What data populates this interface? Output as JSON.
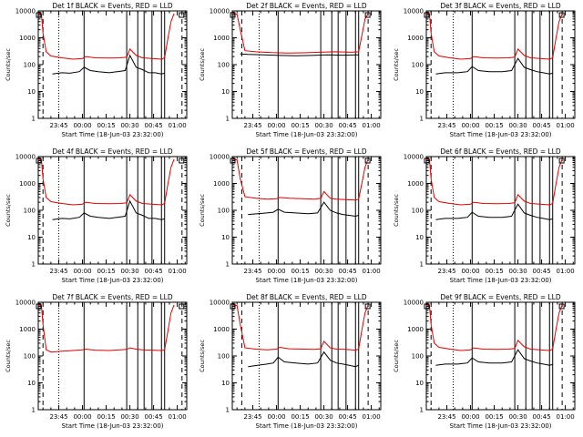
{
  "page": {
    "background": "#ffffff"
  },
  "colors": {
    "events": "#000000",
    "lld": "#e00000",
    "axis": "#000000"
  },
  "ylabel": "Counts/sec",
  "xlabel": "Start Time (18-Jun-03 23:32:00)",
  "x_tick_labels": [
    "23:45",
    "00:00",
    "00:15",
    "00:30",
    "00:45",
    "01:00"
  ],
  "y_tick_labels": [
    "1",
    "10",
    "100",
    "1000",
    "10000"
  ],
  "time_units": "minutes after 23:32:00",
  "chart_data": [
    {
      "type": "line",
      "title": "Det 1f BLACK = Events, RED = LLD",
      "xlim": [
        0,
        94
      ],
      "ylim": [
        1,
        10000
      ],
      "yscale": "log",
      "dashed_lines": [
        3,
        91
      ],
      "dotted_lines": [
        13
      ],
      "solid_lines": [
        29,
        56,
        63,
        67,
        72,
        78,
        80
      ],
      "series": [
        {
          "name": "BLACK = Events",
          "color": "#000000",
          "x": [
            9,
            15,
            20,
            26,
            29,
            33,
            38,
            45,
            50,
            55,
            58,
            62,
            66,
            70,
            74,
            78,
            80
          ],
          "y": [
            45,
            50,
            48,
            55,
            80,
            60,
            55,
            50,
            55,
            60,
            220,
            80,
            65,
            50,
            50,
            45,
            48
          ]
        },
        {
          "name": "RED = LLD",
          "color": "#e00000",
          "x": [
            0,
            2,
            3,
            5,
            8,
            15,
            22,
            28,
            30,
            36,
            45,
            52,
            56,
            58,
            62,
            66,
            72,
            78,
            80,
            82,
            84,
            86
          ],
          "y": [
            8000,
            7500,
            1500,
            300,
            210,
            180,
            160,
            170,
            200,
            180,
            175,
            180,
            190,
            380,
            220,
            180,
            170,
            160,
            180,
            900,
            4000,
            8000
          ]
        }
      ]
    },
    {
      "type": "line",
      "title": "Det 2f BLACK = Events, RED = LLD",
      "xlim": [
        0,
        94
      ],
      "ylim": [
        1,
        10000
      ],
      "yscale": "log",
      "dashed_lines": [
        6,
        86
      ],
      "dotted_lines": [
        17
      ],
      "solid_lines": [
        29,
        56,
        63,
        67,
        72,
        78,
        80
      ],
      "series": [
        {
          "name": "BLACK = Events",
          "color": "#000000",
          "x": [
            5,
            10,
            20,
            30,
            40,
            50,
            60,
            70,
            80
          ],
          "y": [
            250,
            240,
            230,
            220,
            215,
            220,
            230,
            225,
            230
          ]
        },
        {
          "name": "RED = LLD",
          "color": "#e00000",
          "x": [
            0,
            3,
            5,
            8,
            15,
            25,
            35,
            45,
            55,
            65,
            75,
            80,
            82,
            84,
            86
          ],
          "y": [
            8000,
            7500,
            2000,
            330,
            300,
            280,
            270,
            275,
            290,
            300,
            290,
            300,
            1200,
            5000,
            8000
          ]
        }
      ]
    },
    {
      "type": "line",
      "title": "Det 3f BLACK = Events, RED = LLD",
      "xlim": [
        0,
        94
      ],
      "ylim": [
        1,
        10000
      ],
      "yscale": "log",
      "dashed_lines": [
        3,
        86
      ],
      "dotted_lines": [
        17
      ],
      "solid_lines": [
        29,
        56,
        63,
        67,
        72,
        78,
        80
      ],
      "series": [
        {
          "name": "BLACK = Events",
          "color": "#000000",
          "x": [
            6,
            12,
            20,
            26,
            29,
            33,
            40,
            48,
            54,
            58,
            62,
            66,
            70,
            74,
            78,
            80
          ],
          "y": [
            45,
            50,
            50,
            55,
            85,
            60,
            55,
            55,
            60,
            170,
            80,
            65,
            55,
            50,
            45,
            48
          ]
        },
        {
          "name": "RED = LLD",
          "color": "#e00000",
          "x": [
            0,
            2,
            3,
            5,
            8,
            15,
            22,
            28,
            30,
            36,
            45,
            52,
            56,
            58,
            62,
            66,
            72,
            78,
            80,
            82,
            84,
            86
          ],
          "y": [
            8000,
            7500,
            1500,
            300,
            210,
            180,
            160,
            170,
            200,
            180,
            175,
            180,
            190,
            380,
            220,
            180,
            170,
            160,
            180,
            900,
            4000,
            8000
          ]
        }
      ]
    },
    {
      "type": "line",
      "title": "Det 4f BLACK = Events, RED = LLD",
      "xlim": [
        0,
        94
      ],
      "ylim": [
        1,
        10000
      ],
      "yscale": "log",
      "dashed_lines": [
        3,
        91
      ],
      "dotted_lines": [
        13
      ],
      "solid_lines": [
        29,
        56,
        63,
        67,
        72,
        78,
        80
      ],
      "series": [
        {
          "name": "BLACK = Events",
          "color": "#000000",
          "x": [
            9,
            15,
            20,
            26,
            29,
            33,
            38,
            45,
            50,
            55,
            58,
            62,
            66,
            70,
            74,
            78,
            80
          ],
          "y": [
            45,
            50,
            48,
            55,
            80,
            60,
            55,
            50,
            55,
            60,
            220,
            80,
            65,
            50,
            50,
            45,
            48
          ]
        },
        {
          "name": "RED = LLD",
          "color": "#e00000",
          "x": [
            0,
            2,
            3,
            5,
            8,
            15,
            22,
            28,
            30,
            36,
            45,
            52,
            56,
            58,
            62,
            66,
            72,
            78,
            80,
            82,
            84,
            86
          ],
          "y": [
            8000,
            7500,
            1500,
            300,
            210,
            180,
            160,
            170,
            200,
            180,
            175,
            180,
            190,
            380,
            220,
            180,
            170,
            160,
            180,
            900,
            4000,
            8000
          ]
        }
      ]
    },
    {
      "type": "line",
      "title": "Det 5f BLACK = Events, RED = LLD",
      "xlim": [
        0,
        94
      ],
      "ylim": [
        1,
        10000
      ],
      "yscale": "log",
      "dashed_lines": [
        6,
        86
      ],
      "dotted_lines": [
        17
      ],
      "solid_lines": [
        29,
        56,
        63,
        67,
        72,
        78,
        80
      ],
      "series": [
        {
          "name": "BLACK = Events",
          "color": "#000000",
          "x": [
            10,
            16,
            22,
            26,
            29,
            33,
            40,
            48,
            54,
            58,
            62,
            66,
            70,
            74,
            78,
            80
          ],
          "y": [
            70,
            75,
            80,
            85,
            110,
            85,
            80,
            75,
            80,
            200,
            100,
            80,
            70,
            65,
            60,
            65
          ]
        },
        {
          "name": "RED = LLD",
          "color": "#e00000",
          "x": [
            0,
            3,
            5,
            8,
            15,
            22,
            28,
            30,
            36,
            45,
            52,
            56,
            58,
            62,
            66,
            72,
            78,
            80,
            82,
            84,
            86
          ],
          "y": [
            8000,
            7500,
            1500,
            320,
            280,
            260,
            270,
            300,
            280,
            270,
            260,
            280,
            500,
            280,
            260,
            250,
            240,
            260,
            1000,
            4000,
            8000
          ]
        }
      ]
    },
    {
      "type": "line",
      "title": "Det 6f BLACK = Events, RED = LLD",
      "xlim": [
        0,
        94
      ],
      "ylim": [
        1,
        10000
      ],
      "yscale": "log",
      "dashed_lines": [
        3,
        86
      ],
      "dotted_lines": [
        17
      ],
      "solid_lines": [
        29,
        56,
        63,
        67,
        72,
        78,
        80
      ],
      "series": [
        {
          "name": "BLACK = Events",
          "color": "#000000",
          "x": [
            6,
            12,
            20,
            26,
            29,
            33,
            40,
            48,
            54,
            58,
            62,
            66,
            70,
            74,
            78,
            80
          ],
          "y": [
            45,
            50,
            50,
            55,
            85,
            60,
            55,
            55,
            60,
            170,
            80,
            65,
            55,
            50,
            45,
            48
          ]
        },
        {
          "name": "RED = LLD",
          "color": "#e00000",
          "x": [
            0,
            2,
            3,
            5,
            8,
            15,
            22,
            28,
            30,
            36,
            45,
            52,
            56,
            58,
            62,
            66,
            72,
            78,
            80,
            82,
            84,
            86
          ],
          "y": [
            8000,
            7500,
            1500,
            300,
            210,
            180,
            160,
            170,
            200,
            180,
            175,
            180,
            190,
            380,
            220,
            180,
            170,
            160,
            180,
            900,
            4000,
            8000
          ]
        }
      ]
    },
    {
      "type": "line",
      "title": "Det 7f BLACK = Events, RED = LLD",
      "xlim": [
        0,
        94
      ],
      "ylim": [
        1,
        10000
      ],
      "yscale": "log",
      "dashed_lines": [
        3,
        91
      ],
      "dotted_lines": [
        13
      ],
      "solid_lines": [
        29,
        56,
        63,
        67,
        72,
        78,
        80
      ],
      "series": [
        {
          "name": "BLACK = Events",
          "color": "#000000",
          "x": [],
          "y": []
        },
        {
          "name": "RED = LLD",
          "color": "#e00000",
          "x": [
            0,
            2,
            3,
            5,
            8,
            15,
            22,
            28,
            30,
            36,
            45,
            52,
            56,
            58,
            62,
            66,
            72,
            78,
            80,
            82,
            84,
            86
          ],
          "y": [
            8000,
            7500,
            1500,
            170,
            140,
            150,
            160,
            170,
            180,
            165,
            160,
            170,
            175,
            200,
            180,
            170,
            165,
            160,
            170,
            800,
            4000,
            8000
          ]
        }
      ]
    },
    {
      "type": "line",
      "title": "Det 8f BLACK = Events, RED = LLD",
      "xlim": [
        0,
        94
      ],
      "ylim": [
        1,
        10000
      ],
      "yscale": "log",
      "dashed_lines": [
        6,
        86
      ],
      "dotted_lines": [
        17
      ],
      "solid_lines": [
        29,
        56,
        63,
        67,
        72,
        78,
        80
      ],
      "series": [
        {
          "name": "BLACK = Events",
          "color": "#000000",
          "x": [
            10,
            16,
            22,
            26,
            29,
            33,
            40,
            48,
            54,
            58,
            62,
            66,
            70,
            74,
            78,
            80
          ],
          "y": [
            40,
            45,
            50,
            55,
            90,
            60,
            55,
            50,
            55,
            140,
            70,
            55,
            50,
            45,
            40,
            45
          ]
        },
        {
          "name": "RED = LLD",
          "color": "#e00000",
          "x": [
            0,
            3,
            5,
            8,
            15,
            22,
            28,
            30,
            36,
            45,
            52,
            56,
            58,
            62,
            66,
            72,
            78,
            80,
            82,
            84,
            86
          ],
          "y": [
            8000,
            7500,
            1500,
            200,
            180,
            170,
            180,
            210,
            185,
            180,
            175,
            185,
            350,
            200,
            180,
            175,
            165,
            180,
            900,
            4000,
            8000
          ]
        }
      ]
    },
    {
      "type": "line",
      "title": "Det 9f BLACK = Events, RED = LLD",
      "xlim": [
        0,
        94
      ],
      "ylim": [
        1,
        10000
      ],
      "yscale": "log",
      "dashed_lines": [
        3,
        86
      ],
      "dotted_lines": [
        17
      ],
      "solid_lines": [
        29,
        56,
        63,
        67,
        72,
        78,
        80
      ],
      "series": [
        {
          "name": "BLACK = Events",
          "color": "#000000",
          "x": [
            6,
            12,
            20,
            26,
            29,
            33,
            40,
            48,
            54,
            58,
            62,
            66,
            70,
            74,
            78,
            80
          ],
          "y": [
            45,
            50,
            50,
            55,
            85,
            60,
            55,
            55,
            60,
            170,
            80,
            65,
            55,
            50,
            45,
            48
          ]
        },
        {
          "name": "RED = LLD",
          "color": "#e00000",
          "x": [
            0,
            2,
            3,
            5,
            8,
            15,
            22,
            28,
            30,
            36,
            45,
            52,
            56,
            58,
            62,
            66,
            72,
            78,
            80,
            82,
            84,
            86
          ],
          "y": [
            8000,
            7500,
            1500,
            300,
            210,
            180,
            160,
            170,
            200,
            180,
            175,
            180,
            190,
            380,
            220,
            180,
            170,
            160,
            180,
            900,
            4000,
            8000
          ]
        }
      ]
    }
  ]
}
